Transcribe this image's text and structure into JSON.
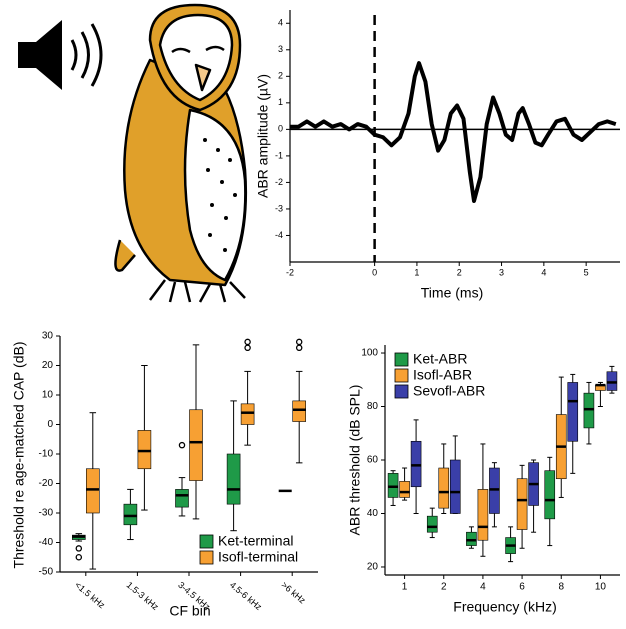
{
  "chart_data": [
    {
      "type": "line",
      "x_label": "Time (ms)",
      "y_label": "ABR amplitude (µV)",
      "x": [
        -2,
        -1.8,
        -1.6,
        -1.4,
        -1.2,
        -1,
        -0.8,
        -0.6,
        -0.4,
        -0.2,
        0,
        0.2,
        0.4,
        0.6,
        0.8,
        0.95,
        1.05,
        1.2,
        1.35,
        1.5,
        1.65,
        1.8,
        1.95,
        2.1,
        2.25,
        2.35,
        2.5,
        2.65,
        2.8,
        2.95,
        3.1,
        3.25,
        3.4,
        3.5,
        3.65,
        3.8,
        3.95,
        4.1,
        4.3,
        4.5,
        4.7,
        4.9,
        5.1,
        5.3,
        5.5,
        5.7
      ],
      "values": [
        0.1,
        0.1,
        0.3,
        0.1,
        0.3,
        0.1,
        0.2,
        0.0,
        0.2,
        0.1,
        -0.2,
        -0.3,
        -0.6,
        -0.3,
        0.6,
        2.0,
        2.5,
        1.8,
        0.2,
        -0.8,
        -0.4,
        0.6,
        0.9,
        0.4,
        -1.6,
        -2.7,
        -1.8,
        0.2,
        1.2,
        0.6,
        -0.2,
        -0.4,
        0.6,
        0.8,
        0.2,
        -0.5,
        -0.6,
        -0.2,
        0.3,
        0.4,
        -0.2,
        -0.4,
        -0.1,
        0.2,
        0.3,
        0.2
      ],
      "color": "#000000",
      "marker_x": 0,
      "xlim": [
        -2,
        5.8
      ],
      "xticks": [
        -2,
        0,
        1,
        2,
        3,
        4,
        5
      ],
      "ylim": [
        -5,
        4.5
      ],
      "yticks": [
        -4,
        -3,
        -2,
        -1,
        0,
        1,
        2,
        3,
        4
      ]
    },
    {
      "type": "box",
      "x_label": "CF bin",
      "y_label": "Threshold re age-matched CAP (dB)",
      "categories": [
        "<1.5 kHz",
        "1.5-3 kHz",
        "3-4.5 kHz",
        "4.5-6 kHz",
        ">6 kHz"
      ],
      "legend": "lower right",
      "ylim": [
        -50,
        30
      ],
      "yticks": [
        -50,
        -40,
        -30,
        -20,
        -10,
        0,
        10,
        20,
        30
      ],
      "series": [
        {
          "name": "Ket-terminal",
          "color": "#1f9a48",
          "values": [
            {
              "min": -39.5,
              "q1": -39,
              "median": -38,
              "q3": -37.5,
              "max": -37,
              "outliers": [
                -42,
                -45
              ]
            },
            {
              "min": -39,
              "q1": -34,
              "median": -31,
              "q3": -27,
              "max": -22,
              "outliers": []
            },
            {
              "min": -31,
              "q1": -28,
              "median": -24,
              "q3": -22,
              "max": -18,
              "outliers": [
                -7
              ]
            },
            {
              "min": -36,
              "q1": -27,
              "median": -22,
              "q3": -10,
              "max": 8,
              "outliers": []
            },
            {
              "min": -22.5,
              "q1": -22.5,
              "median": -22.5,
              "q3": -22.5,
              "max": -22.5,
              "outliers": []
            }
          ]
        },
        {
          "name": "Isofl-terminal",
          "color": "#f7a033",
          "values": [
            {
              "min": -49,
              "q1": -30,
              "median": -22,
              "q3": -15,
              "max": 4,
              "outliers": []
            },
            {
              "min": -29,
              "q1": -15,
              "median": -9,
              "q3": -2,
              "max": 20,
              "outliers": []
            },
            {
              "min": -32,
              "q1": -19,
              "median": -6,
              "q3": 5,
              "max": 27,
              "outliers": []
            },
            {
              "min": -7,
              "q1": 0,
              "median": 4,
              "q3": 7,
              "max": 18,
              "outliers": [
                26,
                28
              ]
            },
            {
              "min": -13,
              "q1": 1,
              "median": 5,
              "q3": 8,
              "max": 18,
              "outliers": [
                26,
                28
              ]
            }
          ]
        }
      ]
    },
    {
      "type": "box",
      "x_label": "Frequency (kHz)",
      "y_label": "ABR threshold (dB SPL)",
      "categories": [
        "1",
        "2",
        "4",
        "6",
        "8",
        "10"
      ],
      "legend": "upper left",
      "ylim": [
        17,
        103
      ],
      "yticks": [
        20,
        40,
        60,
        80,
        100
      ],
      "series": [
        {
          "name": "Ket-ABR",
          "color": "#1f9a48",
          "values": [
            {
              "min": 43,
              "q1": 46,
              "median": 50,
              "q3": 55,
              "max": 56,
              "outliers": []
            },
            {
              "min": 31,
              "q1": 33,
              "median": 35,
              "q3": 39,
              "max": 42,
              "outliers": []
            },
            {
              "min": 27,
              "q1": 28,
              "median": 30,
              "q3": 33,
              "max": 35,
              "outliers": []
            },
            {
              "min": 22,
              "q1": 25,
              "median": 28,
              "q3": 31,
              "max": 35,
              "outliers": []
            },
            {
              "min": 28,
              "q1": 38,
              "median": 45,
              "q3": 56,
              "max": 61,
              "outliers": []
            },
            {
              "min": 66,
              "q1": 72,
              "median": 79,
              "q3": 85,
              "max": 89,
              "outliers": []
            }
          ]
        },
        {
          "name": "Isofl-ABR",
          "color": "#f7a033",
          "values": [
            {
              "min": 45,
              "q1": 46,
              "median": 48,
              "q3": 52,
              "max": 57,
              "outliers": []
            },
            {
              "min": 40,
              "q1": 42,
              "median": 48,
              "q3": 57,
              "max": 66,
              "outliers": []
            },
            {
              "min": 24,
              "q1": 30,
              "median": 35,
              "q3": 49,
              "max": 66,
              "outliers": []
            },
            {
              "min": 27,
              "q1": 34,
              "median": 45,
              "q3": 53,
              "max": 58,
              "outliers": []
            },
            {
              "min": 46,
              "q1": 53,
              "median": 65,
              "q3": 77,
              "max": 91,
              "outliers": []
            },
            {
              "min": 80,
              "q1": 86,
              "median": 88,
              "q3": 88,
              "max": 89,
              "outliers": []
            }
          ]
        },
        {
          "name": "Sevofl-ABR",
          "color": "#3a3fa8",
          "values": [
            {
              "min": 40,
              "q1": 50,
              "median": 58,
              "q3": 67,
              "max": 75,
              "outliers": []
            },
            {
              "min": 40,
              "q1": 40,
              "median": 48,
              "q3": 60,
              "max": 69,
              "outliers": []
            },
            {
              "min": 35,
              "q1": 40,
              "median": 49,
              "q3": 57,
              "max": 59,
              "outliers": []
            },
            {
              "min": 33,
              "q1": 43,
              "median": 51,
              "q3": 59,
              "max": 60,
              "outliers": []
            },
            {
              "min": 55,
              "q1": 67,
              "median": 82,
              "q3": 89,
              "max": 92,
              "outliers": []
            },
            {
              "min": 85,
              "q1": 86,
              "median": 89,
              "q3": 93,
              "max": 95,
              "outliers": []
            }
          ]
        }
      ]
    }
  ]
}
